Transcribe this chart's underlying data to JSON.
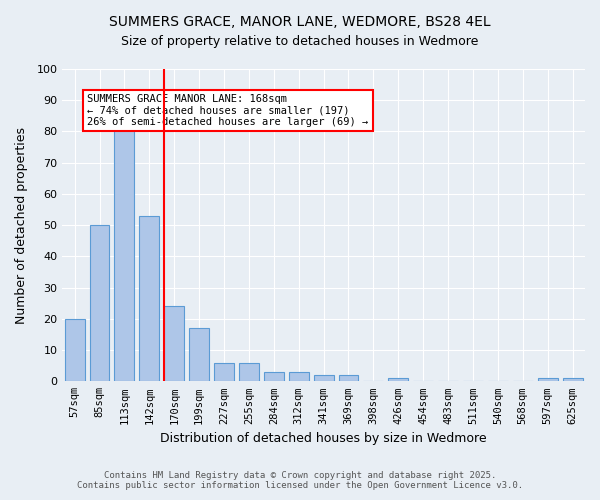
{
  "title_line1": "SUMMERS GRACE, MANOR LANE, WEDMORE, BS28 4EL",
  "title_line2": "Size of property relative to detached houses in Wedmore",
  "xlabel": "Distribution of detached houses by size in Wedmore",
  "ylabel": "Number of detached properties",
  "bar_labels": [
    "57sqm",
    "85sqm",
    "113sqm",
    "142sqm",
    "170sqm",
    "199sqm",
    "227sqm",
    "255sqm",
    "284sqm",
    "312sqm",
    "341sqm",
    "369sqm",
    "398sqm",
    "426sqm",
    "454sqm",
    "483sqm",
    "511sqm",
    "540sqm",
    "568sqm",
    "597sqm",
    "625sqm"
  ],
  "bar_values": [
    20,
    50,
    81,
    53,
    24,
    17,
    6,
    6,
    3,
    3,
    2,
    2,
    0,
    1,
    0,
    0,
    0,
    0,
    0,
    1,
    1
  ],
  "bar_color": "#aec6e8",
  "bar_edge_color": "#5b9bd5",
  "background_color": "#e8eef4",
  "vline_x": 4,
  "vline_color": "red",
  "annotation_text": "SUMMERS GRACE MANOR LANE: 168sqm\n← 74% of detached houses are smaller (197)\n26% of semi-detached houses are larger (69) →",
  "annotation_box_color": "white",
  "annotation_box_edge_color": "red",
  "footer_line1": "Contains HM Land Registry data © Crown copyright and database right 2025.",
  "footer_line2": "Contains public sector information licensed under the Open Government Licence v3.0.",
  "ylim": [
    0,
    100
  ],
  "yticks": [
    0,
    10,
    20,
    30,
    40,
    50,
    60,
    70,
    80,
    90,
    100
  ]
}
